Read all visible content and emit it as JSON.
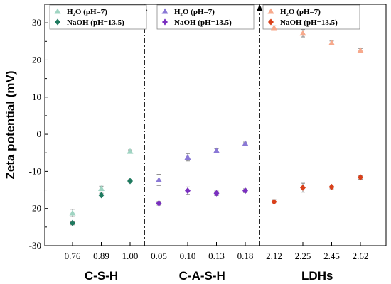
{
  "chart_data": {
    "type": "scatter",
    "ylabel": "Zeta potential (mV)",
    "ylim": [
      -30,
      35
    ],
    "y_ticks": [
      -30,
      -20,
      -10,
      0,
      10,
      20,
      30
    ],
    "categories": [
      "0.76",
      "0.89",
      "1.00",
      "0.05",
      "0.10",
      "0.13",
      "0.18",
      "2.12",
      "2.25",
      "2.45",
      "2.62"
    ],
    "groups": [
      {
        "label": "C-S-H",
        "categories": [
          "0.76",
          "0.89",
          "1.00"
        ],
        "legend": [
          {
            "text": "H₂O    (pH=7)",
            "marker": "triangle",
            "color": "#9fd4c2"
          },
          {
            "text": "NaOH  (pH=13.5)",
            "marker": "diamond",
            "color": "#1e7a5f"
          }
        ],
        "series": [
          {
            "marker": "triangle",
            "color": "#9fd4c2",
            "values": [
              -21.2,
              -14.6,
              -4.6
            ],
            "errors": [
              1.0,
              0.6,
              0.4
            ]
          },
          {
            "marker": "diamond",
            "color": "#1e7a5f",
            "values": [
              -23.9,
              -16.4,
              -12.6
            ],
            "errors": [
              0.5,
              0.5,
              0.4
            ]
          }
        ]
      },
      {
        "label": "C-A-S-H",
        "categories": [
          "0.05",
          "0.10",
          "0.13",
          "0.18"
        ],
        "legend": [
          {
            "text": "H₂O    (pH=7)",
            "marker": "triangle",
            "color": "#8a78d6"
          },
          {
            "text": "NaOH  (pH=13.5)",
            "marker": "diamond",
            "color": "#7a2fc0"
          }
        ],
        "series": [
          {
            "marker": "triangle",
            "color": "#8a78d6",
            "values": [
              -12.3,
              -6.2,
              -4.4,
              -2.5
            ],
            "errors": [
              1.5,
              1.0,
              0.5,
              0.4
            ]
          },
          {
            "marker": "diamond",
            "color": "#7a2fc0",
            "values": [
              -18.6,
              -15.2,
              -15.9,
              -15.2
            ],
            "errors": [
              0.5,
              1.0,
              0.6,
              0.5
            ]
          }
        ]
      },
      {
        "label": "LDHs",
        "categories": [
          "2.12",
          "2.25",
          "2.45",
          "2.62"
        ],
        "legend": [
          {
            "text": "H₂O    (pH=7)",
            "marker": "triangle",
            "color": "#f7a98c"
          },
          {
            "text": "NaOH  (pH=13.5)",
            "marker": "diamond",
            "color": "#d9401a"
          }
        ],
        "series": [
          {
            "marker": "triangle",
            "color": "#f7a98c",
            "values": [
              28.7,
              27.2,
              24.6,
              22.6
            ],
            "errors": [
              0.5,
              1.0,
              0.5,
              0.5
            ]
          },
          {
            "marker": "diamond",
            "color": "#d9401a",
            "values": [
              -18.2,
              -14.4,
              -14.2,
              -11.6
            ],
            "errors": [
              0.6,
              1.2,
              0.5,
              0.5
            ]
          }
        ]
      }
    ]
  }
}
